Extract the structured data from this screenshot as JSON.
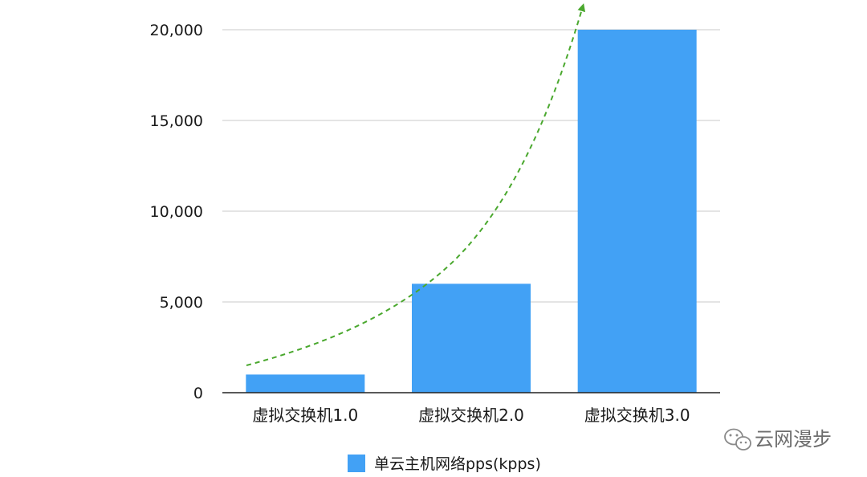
{
  "chart_data": {
    "type": "bar",
    "categories": [
      "虚拟交换机1.0",
      "虚拟交换机2.0",
      "虚拟交换机3.0"
    ],
    "series": [
      {
        "name": "单云主机网络pps(kpps)",
        "values": [
          1000,
          6000,
          20000
        ]
      }
    ],
    "yticks": [
      0,
      5000,
      10000,
      15000,
      20000
    ],
    "ytick_labels": [
      "0",
      "5,000",
      "10,000",
      "15,000",
      "20,000"
    ],
    "ylim": [
      0,
      20000
    ],
    "grid": true,
    "legend": "bottom-center",
    "trend_arrow": true,
    "colors": {
      "bar": "#42a1f5",
      "grid": "#c8c8c8",
      "axis": "#222222",
      "trend": "#4aa82e"
    }
  },
  "watermark": {
    "text": "云网漫步",
    "icon": "wechat-icon"
  }
}
